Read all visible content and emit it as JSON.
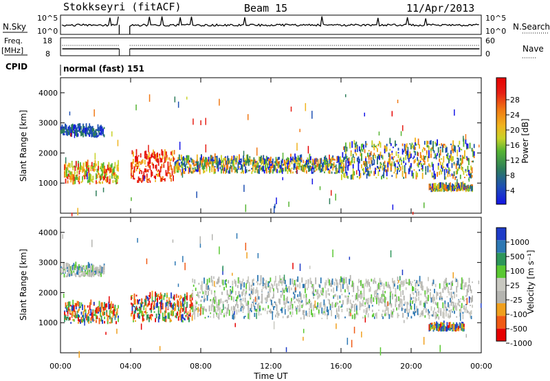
{
  "header": {
    "station": "Stokkseyri (fitACF)",
    "beam": "Beam 15",
    "date": "11/Apr/2013"
  },
  "params": {
    "nsky_label": "N.Sky",
    "nsky_ticks": [
      "10^5",
      "10^0"
    ],
    "nsearch_label": "N.Search",
    "nsearch_ticks": [
      "10^5",
      "10^0"
    ],
    "freq_label": "Freq.",
    "freq_unit": "[MHz]",
    "freq_ticks": [
      "18",
      "8"
    ],
    "nave_label": "Nave",
    "nave_ticks": [
      "60",
      "0"
    ],
    "cpid_label": "CPID",
    "cpid_value": "normal (fast) 151"
  },
  "chart_data": [
    {
      "type": "heatmap",
      "panel": "power",
      "ylabel": "Slant Range [km]",
      "ylim": [
        0,
        4500
      ],
      "yticks": [
        "1000",
        "2000",
        "3000",
        "4000"
      ],
      "colorbar_label": "Power [dB]",
      "colorbar_ticks": [
        "28",
        "24",
        "20",
        "16",
        "12",
        "8",
        "4"
      ],
      "colors": [
        "#1414e6",
        "#1e50b4",
        "#2d7d5a",
        "#55b432",
        "#c8d228",
        "#f0b41e",
        "#f07814",
        "#e61e14",
        "#e60000"
      ],
      "bands": [
        {
          "x": [
            0.2,
            3.3
          ],
          "y": [
            950,
            1750
          ],
          "level": "high"
        },
        {
          "x": [
            4.0,
            6.5
          ],
          "y": [
            1000,
            2200
          ],
          "level": "very-high"
        },
        {
          "x": [
            6.5,
            16.0
          ],
          "y": [
            1300,
            1900
          ],
          "level": "medium"
        },
        {
          "x": [
            16.0,
            23.6
          ],
          "y": [
            1100,
            2600
          ],
          "level": "medium"
        },
        {
          "x": [
            0.0,
            2.5
          ],
          "y": [
            2500,
            2900
          ],
          "level": "low"
        },
        {
          "x": [
            21.0,
            23.5
          ],
          "y": [
            700,
            900
          ],
          "level": "medium"
        }
      ]
    },
    {
      "type": "heatmap",
      "panel": "velocity",
      "xlabel": "Time UT",
      "xticks": [
        "00:00",
        "04:00",
        "08:00",
        "12:00",
        "16:00",
        "20:00",
        "00:00"
      ],
      "xlim": [
        0,
        24
      ],
      "ylabel": "Slant Range [km]",
      "ylim": [
        0,
        4500
      ],
      "yticks": [
        "1000",
        "2000",
        "3000",
        "4000"
      ],
      "colorbar_label": "Velocity [m s⁻¹]",
      "colorbar_ticks": [
        "1000",
        "500",
        "100",
        "25",
        "-25",
        "-100",
        "-500",
        "-1000"
      ],
      "colors": [
        "#1e3cc8",
        "#2d78b4",
        "#2d965a",
        "#5ac832",
        "#c8c8c0",
        "#b4b4b0",
        "#f0a01e",
        "#f05a14",
        "#e60000"
      ],
      "bands": [
        {
          "x": [
            0.2,
            3.3
          ],
          "y": [
            950,
            1750
          ],
          "level": "negative"
        },
        {
          "x": [
            4.0,
            7.5
          ],
          "y": [
            1000,
            2100
          ],
          "level": "negative"
        },
        {
          "x": [
            7.5,
            23.5
          ],
          "y": [
            1100,
            2700
          ],
          "level": "near-zero"
        },
        {
          "x": [
            0.0,
            2.5
          ],
          "y": [
            2500,
            2900
          ],
          "level": "near-zero"
        },
        {
          "x": [
            21.0,
            23.0
          ],
          "y": [
            700,
            900
          ],
          "level": "mixed"
        }
      ]
    }
  ]
}
